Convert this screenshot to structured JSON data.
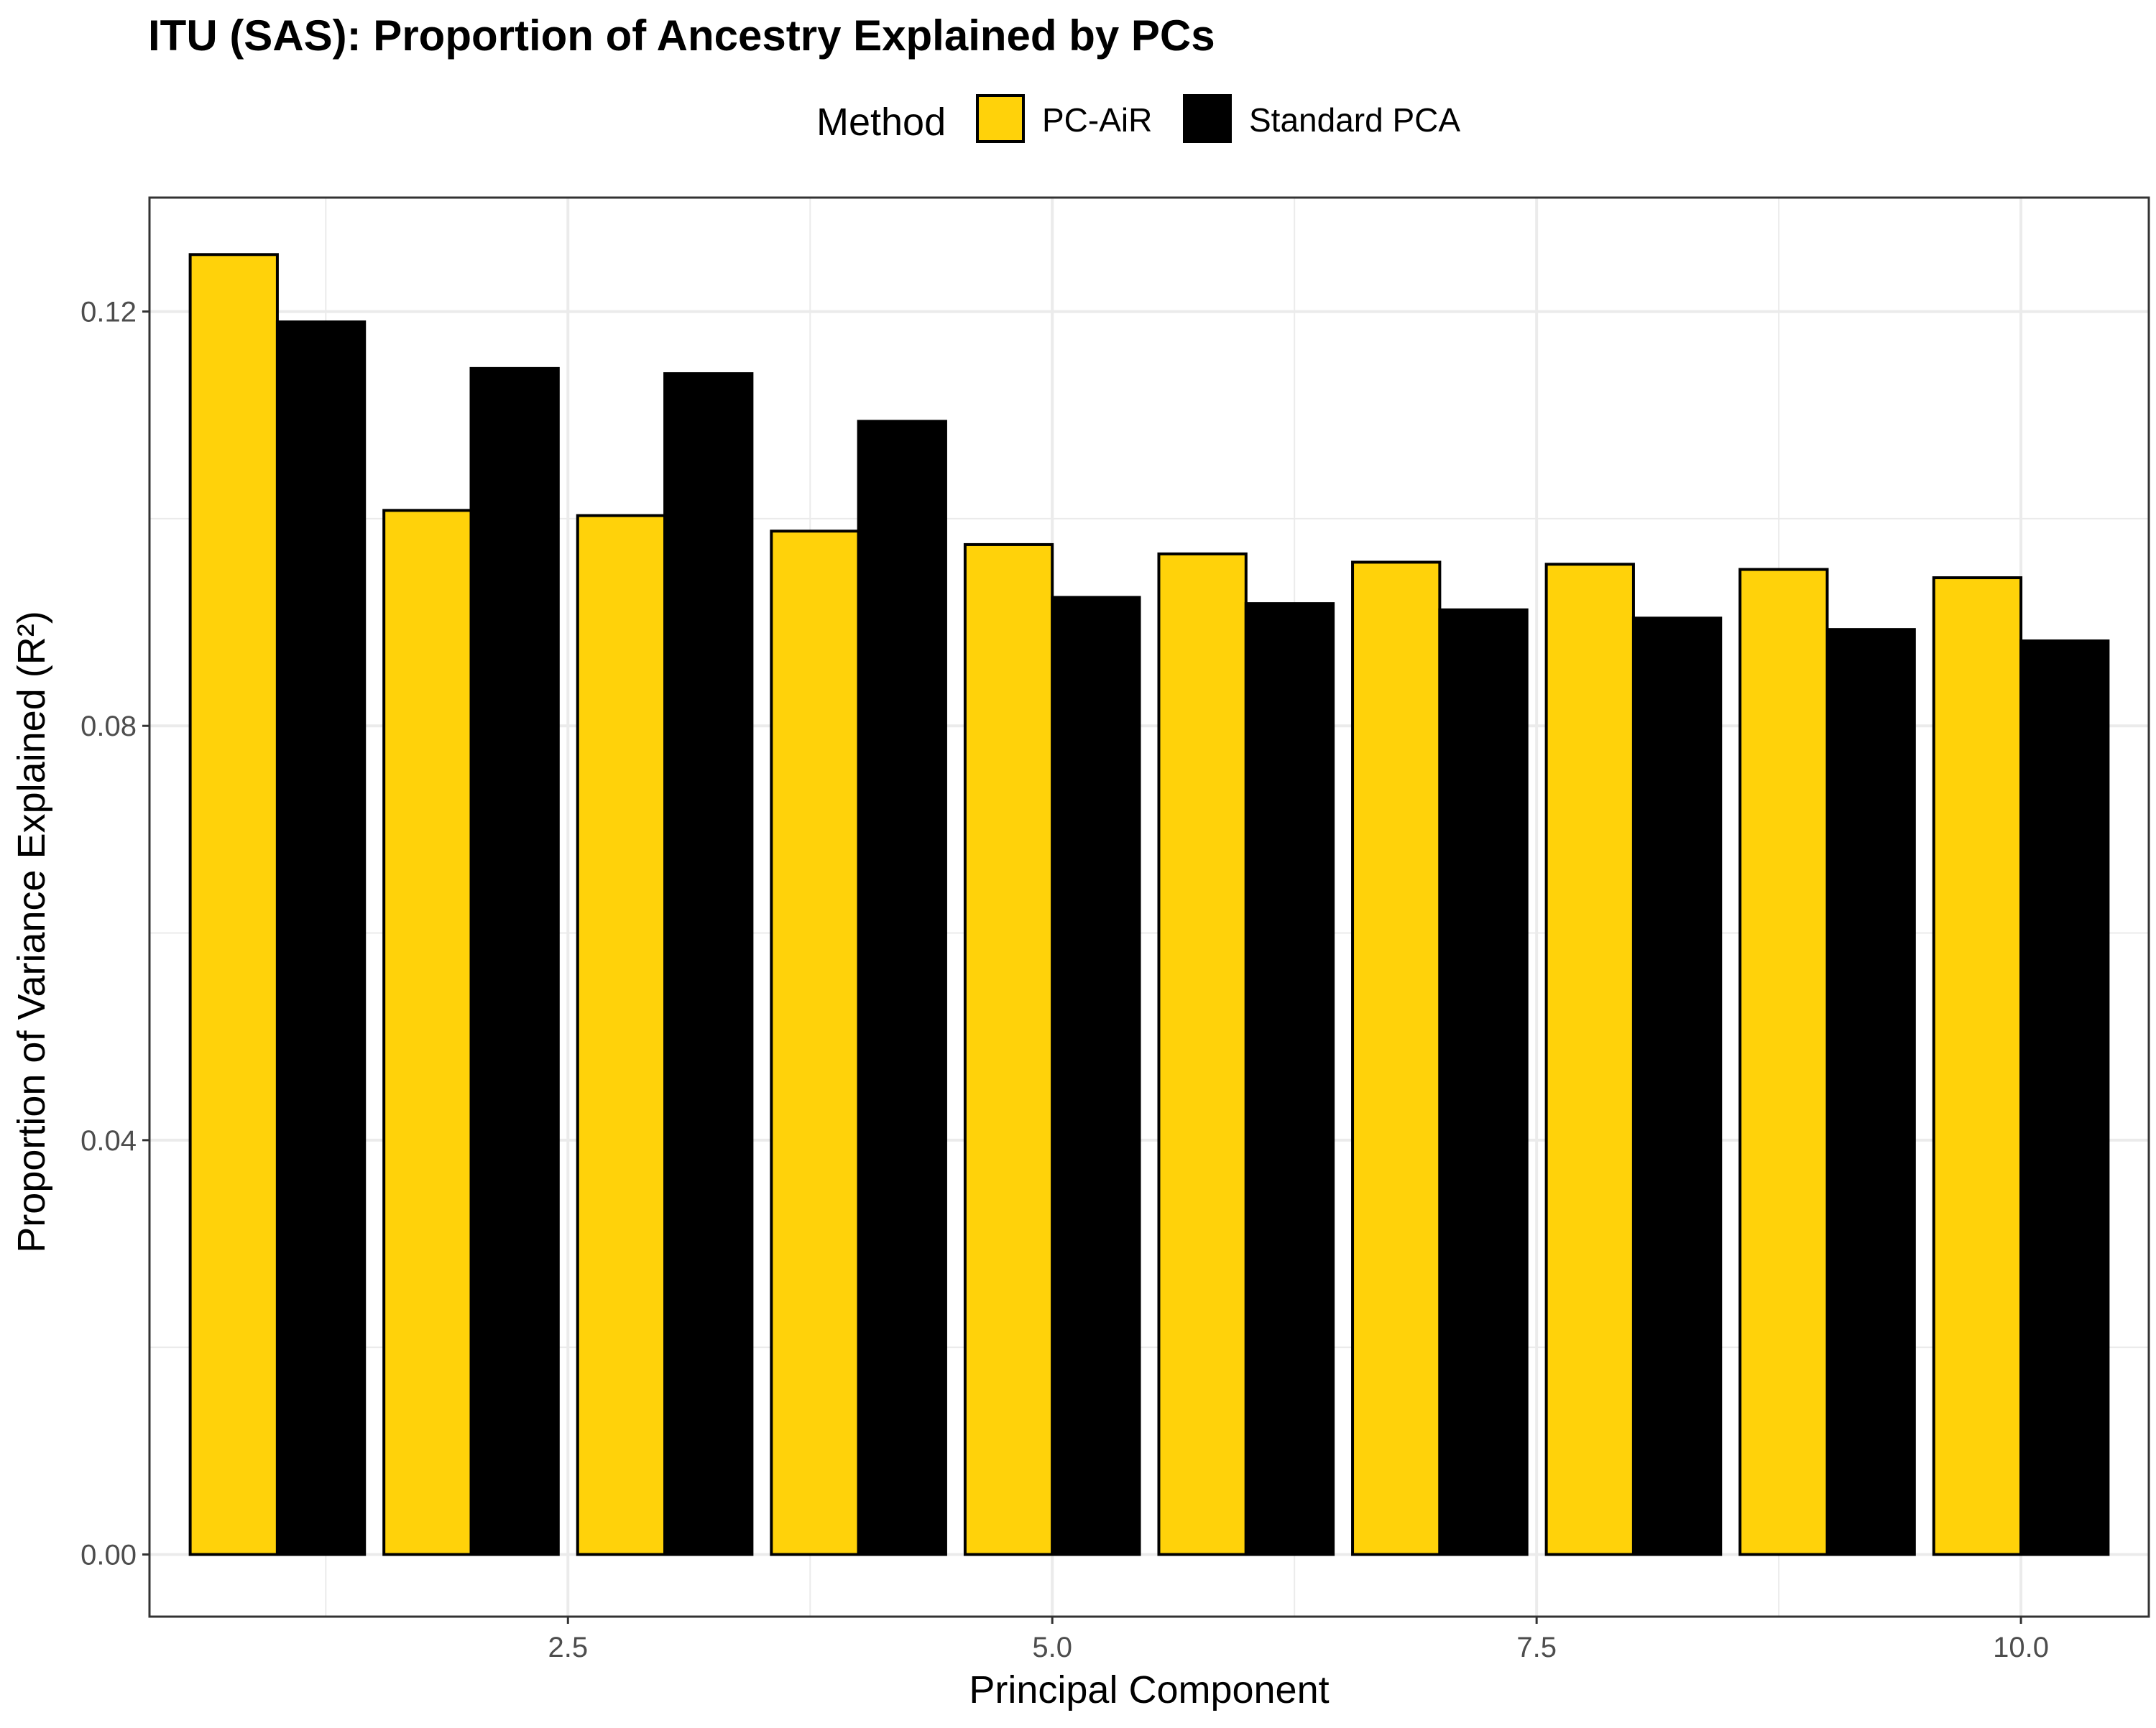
{
  "chart_data": {
    "type": "bar",
    "title": "ITU (SAS): Proportion of Ancestry Explained by PCs",
    "xlabel": "Principal Component",
    "ylabel": "Proportion of Variance Explained (R²)",
    "legend": {
      "title": "Method",
      "position": "top"
    },
    "x": [
      1,
      2,
      3,
      4,
      5,
      6,
      7,
      8,
      9,
      10
    ],
    "series": [
      {
        "name": "PC-AiR",
        "color": "#FFD20A",
        "values": [
          0.1255,
          0.1008,
          0.1003,
          0.0988,
          0.0975,
          0.0966,
          0.0958,
          0.0956,
          0.0951,
          0.0943
        ]
      },
      {
        "name": "Standard PCA",
        "color": "#000000",
        "values": [
          0.119,
          0.1145,
          0.114,
          0.1094,
          0.0924,
          0.0918,
          0.0912,
          0.0904,
          0.0893,
          0.0882
        ]
      }
    ],
    "xlim": [
      0.34,
      10.66
    ],
    "ylim": [
      -0.006,
      0.131
    ],
    "x_ticks": [
      "2.5",
      "5.0",
      "7.5",
      "10.0"
    ],
    "x_tick_values": [
      2.5,
      5.0,
      7.5,
      10.0
    ],
    "y_ticks": [
      "0.00",
      "0.04",
      "0.08",
      "0.12"
    ],
    "y_tick_values": [
      0.0,
      0.04,
      0.08,
      0.12
    ],
    "grid": true,
    "bar_outline_color": "#000000",
    "panel_border_color": "#333333",
    "grid_color": "#ebebeb"
  }
}
